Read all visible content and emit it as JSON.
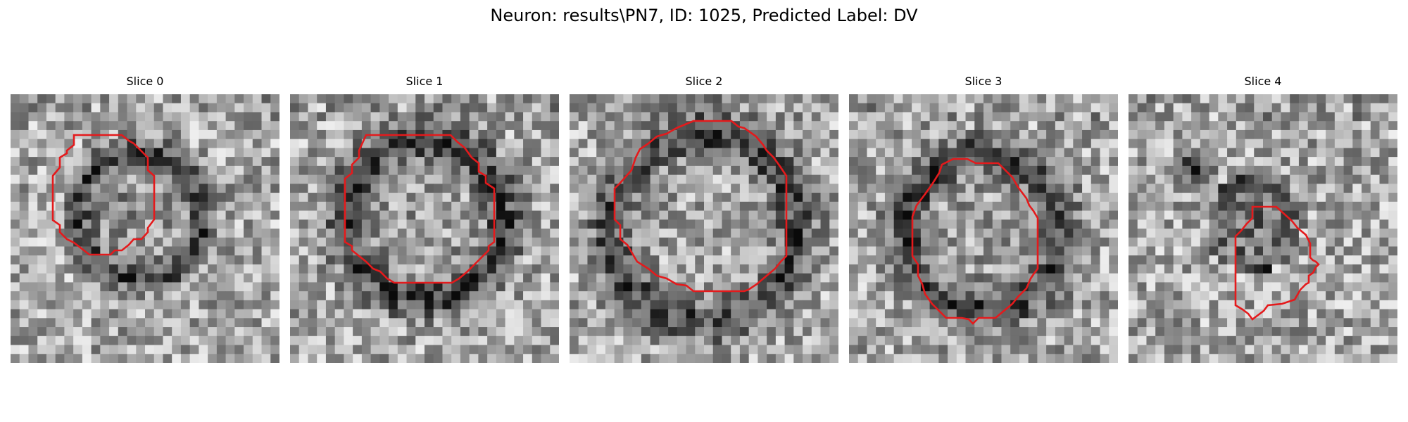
{
  "figure": {
    "title": "Neuron: results\\PN7, ID: 1025, Predicted Label: DV"
  },
  "colors": {
    "contour": "#e41a1c",
    "background": "#ffffff"
  },
  "colormap": "gray",
  "slices": [
    {
      "title": "Slice 0",
      "image": "grayscale-noise-with-dark-ring",
      "contour_color": "#e41a1c"
    },
    {
      "title": "Slice 1",
      "image": "grayscale-noise-with-dark-ring",
      "contour_color": "#e41a1c"
    },
    {
      "title": "Slice 2",
      "image": "grayscale-noise-with-dark-ring",
      "contour_color": "#e41a1c"
    },
    {
      "title": "Slice 3",
      "image": "grayscale-noise-with-dark-ring",
      "contour_color": "#e41a1c"
    },
    {
      "title": "Slice 4",
      "image": "grayscale-noise-with-dark-blob",
      "contour_color": "#e41a1c"
    }
  ]
}
